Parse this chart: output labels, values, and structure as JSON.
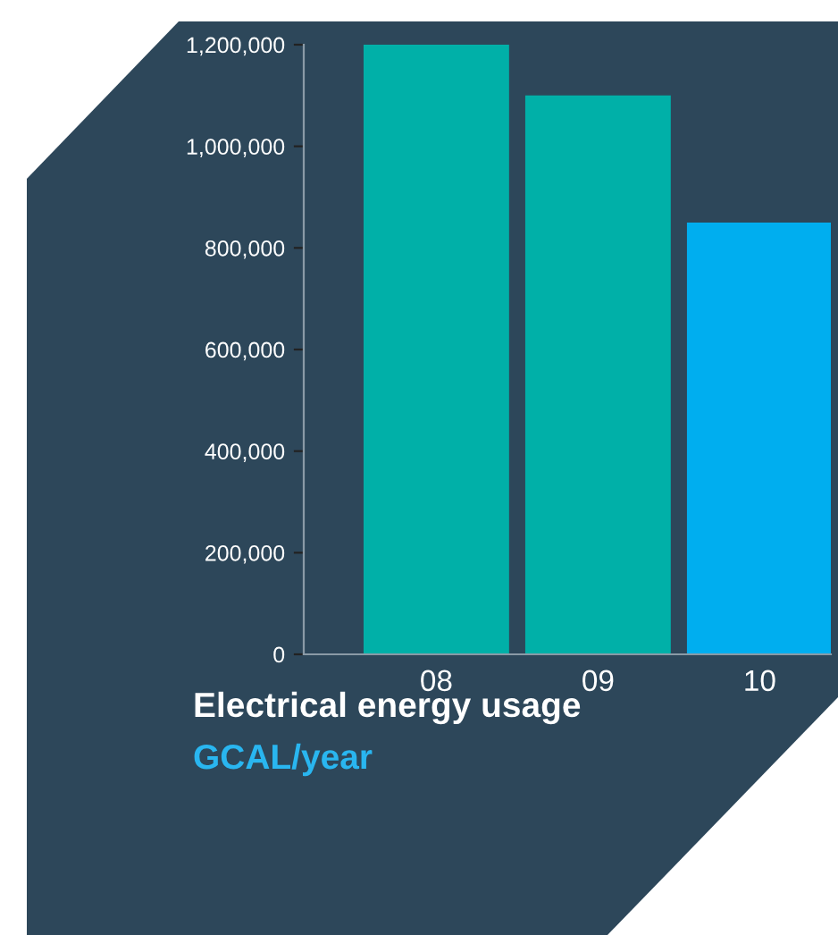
{
  "chart_data": {
    "type": "bar",
    "title": "Electrical energy usage",
    "subtitle": "GCAL/year",
    "categories": [
      "08",
      "09",
      "10"
    ],
    "values": [
      1200000,
      1100000,
      850000
    ],
    "colors": [
      "#00b0a8",
      "#00b0a8",
      "#00aeef"
    ],
    "ylim": [
      0,
      1200000
    ],
    "yticks": [
      {
        "value": 0,
        "label": "0"
      },
      {
        "value": 200000,
        "label": "200,000"
      },
      {
        "value": 400000,
        "label": "400,000"
      },
      {
        "value": 600000,
        "label": "600,000"
      },
      {
        "value": 800000,
        "label": "800,000"
      },
      {
        "value": 1000000,
        "label": "1,000,000"
      },
      {
        "value": 1200000,
        "label": "1,200,000"
      }
    ],
    "grid": false,
    "legend": false
  }
}
